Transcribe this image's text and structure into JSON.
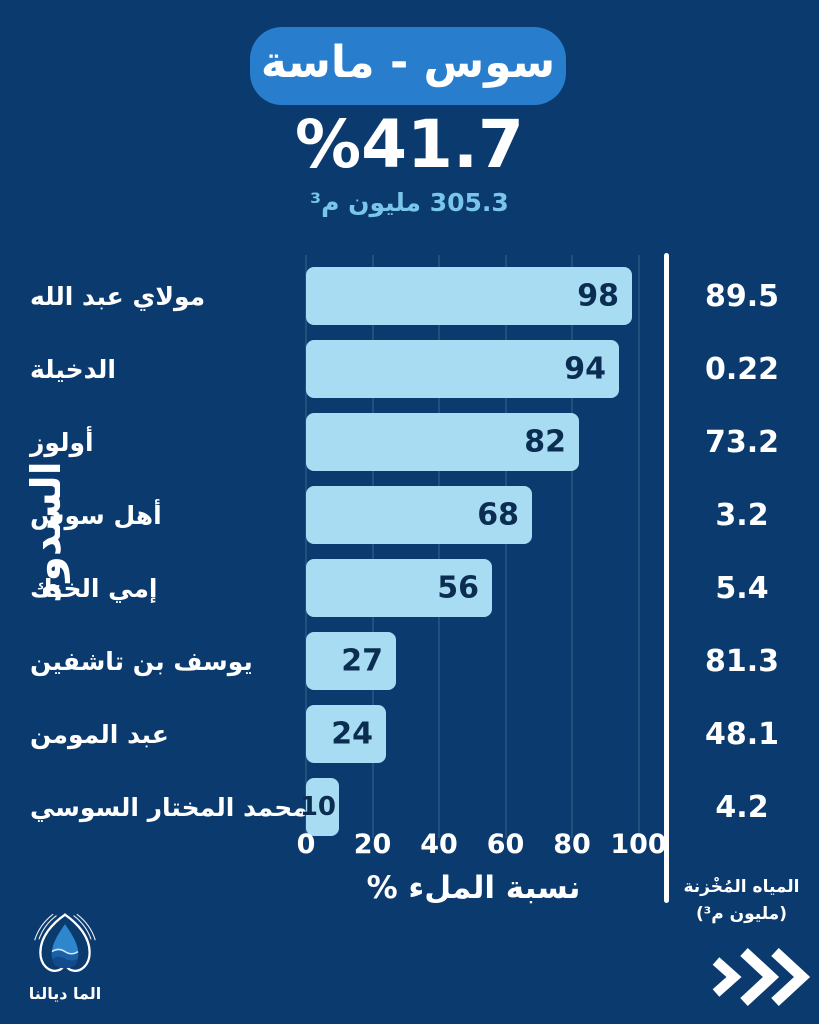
{
  "header": {
    "region_label": "سوس - ماسة",
    "fill_percentage": "%41.7",
    "stored_volume_total": "305.3 مليون م³"
  },
  "chart_data": {
    "type": "bar",
    "orientation": "horizontal",
    "title": "سوس - ماسة",
    "xlabel": "نسبة الملء %",
    "ylabel": "السدود",
    "xlim": [
      0,
      100
    ],
    "x_ticks": [
      0,
      20,
      40,
      60,
      80,
      100
    ],
    "grid": true,
    "categories": [
      "مولاي عبد الله",
      "الدخيلة",
      "أولوز",
      "أهل سوس",
      "إمي الخنك",
      "يوسف بن تاشفين",
      "عبد المومن",
      "محمد المختار السوسي"
    ],
    "series": [
      {
        "name": "نسبة الملء %",
        "values": [
          98,
          94,
          82,
          68,
          56,
          27,
          24,
          10
        ]
      },
      {
        "name": "المياه المُخْزنة (مليون م³)",
        "values": [
          89.5,
          0.22,
          73.2,
          3.2,
          5.4,
          81.3,
          48.1,
          4.2
        ]
      }
    ],
    "value_labels": "inside-end"
  },
  "right_column": {
    "title_line1": "المياه المُخْزنة",
    "title_line2": "(مليون م³)"
  },
  "footer": {
    "brand_name": "الما ديالنا"
  },
  "icons": {
    "brand_logo": "water-drop-in-hands",
    "next_indicator": "triple-chevron-right"
  },
  "colors": {
    "background": "#0b3b6e",
    "badge_blue": "#297dcd",
    "bar_fill": "#a7dcf3",
    "subtitle_blue": "#79c6ea",
    "bar_value_text": "#0b2d52",
    "text": "#ffffff"
  }
}
